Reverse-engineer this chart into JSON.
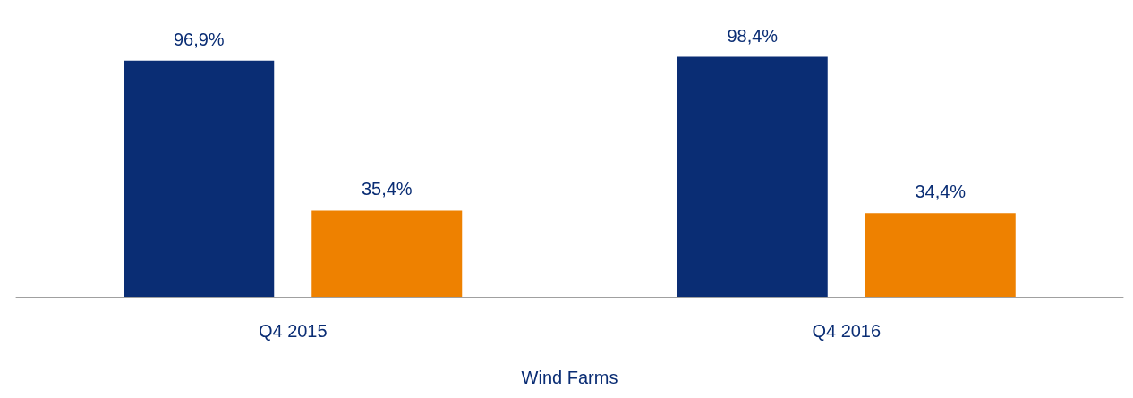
{
  "chart_data": {
    "type": "bar",
    "categories": [
      "Q4 2015",
      "Q4 2016"
    ],
    "xlabel": "Wind Farms",
    "series": [
      {
        "color": "#0a2d74",
        "values": [
          96.9,
          98.4
        ],
        "value_labels": [
          "96,9%",
          "98,4%"
        ]
      },
      {
        "color": "#ee8100",
        "values": [
          35.4,
          34.4
        ],
        "value_labels": [
          "35,4%",
          "34,4%"
        ]
      }
    ]
  }
}
